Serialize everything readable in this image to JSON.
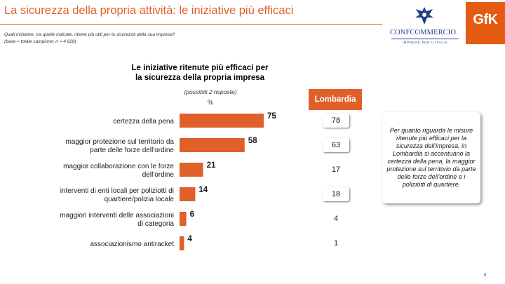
{
  "header": {
    "title": "La sicurezza della propria attività: le iniziative più efficaci",
    "subtitle_line1": "Quali iniziative, tra quelle indicate, ritiene più utili per la sicurezza della sua impresa?",
    "subtitle_line2": "(base = totale campione: n = 4 628)"
  },
  "logos": {
    "confcommercio": {
      "word": "CONFCOMMERCIO",
      "tagline": "IMPRESE PER L'ITALIA",
      "color": "#1f3f86"
    },
    "gfk": {
      "text": "GfK",
      "color": "#e55b13"
    }
  },
  "chart_title_line1": "Le iniziative ritenute più efficaci per",
  "chart_title_line2": "la sicurezza della propria impresa",
  "chart_note": "(possibili 2 risposte)",
  "chart_unit": "%",
  "chart_data": {
    "type": "bar",
    "orientation": "horizontal",
    "title": "Le iniziative ritenute più efficaci per la sicurezza della propria impresa",
    "unit": "%",
    "bar_color": "#e0602a",
    "xlim": [
      0,
      100
    ],
    "grid": false,
    "categories": [
      [
        "certezza della pena"
      ],
      [
        "maggior protezione sul territorio da",
        "parte delle forze dell'ordine"
      ],
      [
        "maggior collaborazione con le forze",
        "dell'ordine"
      ],
      [
        "interventi di enti locali per poliziotti di",
        "quartiere/polizia locale"
      ],
      [
        "maggiori interventi delle associazioni",
        "di categoria"
      ],
      [
        "associazionismo antiracket"
      ]
    ],
    "values": [
      75,
      58,
      21,
      14,
      6,
      4
    ]
  },
  "lombardia": {
    "header": "Lombardia",
    "values": [
      "78",
      "63",
      "17",
      "18",
      "4",
      "1"
    ],
    "highlighted": [
      true,
      true,
      false,
      true,
      false,
      false
    ]
  },
  "comment": "Per quanto riguarda le misure ritenute più efficaci per la sicurezza dell'impresa, in Lombardia si accentuano la certezza della pena, la maggior protezione sul territorio da parte delle forze dell'ordine e i poliziotti di quartiere.",
  "page_number": "8"
}
